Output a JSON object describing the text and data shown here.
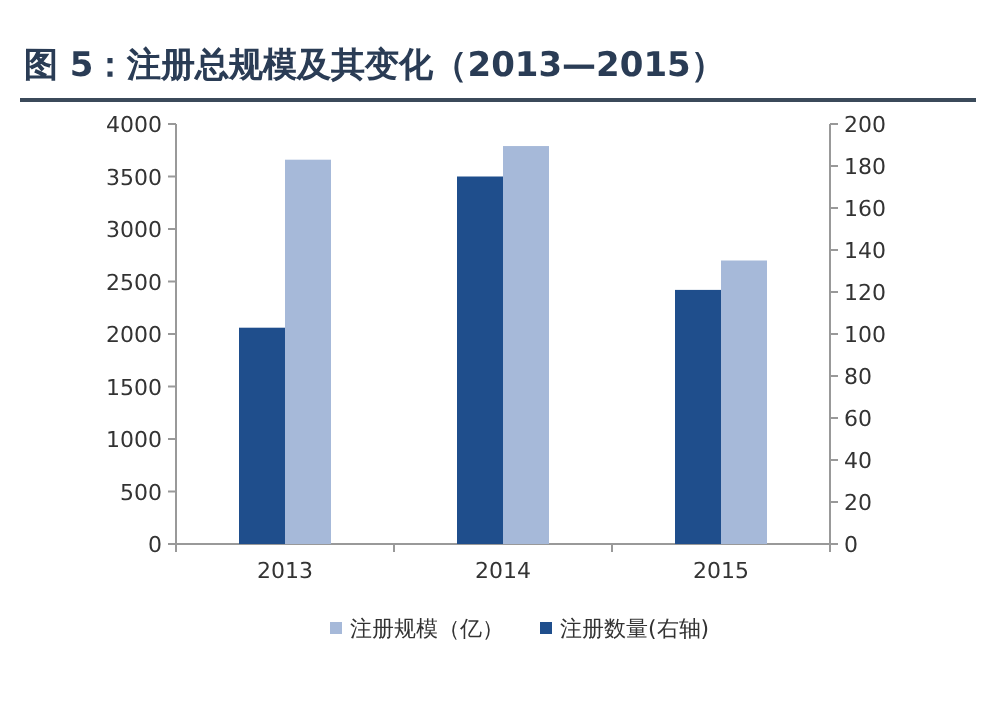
{
  "chart_data": {
    "type": "bar",
    "title": "图 5：注册总规模及其变化（2013—2015）",
    "categories": [
      "2013",
      "2014",
      "2015"
    ],
    "series": [
      {
        "name": "注册规模（亿）",
        "color": "#a6b9d9",
        "values": [
          3660,
          3790,
          2700
        ]
      },
      {
        "name": "注册数量(右轴)",
        "color": "#1f4e8c",
        "values": [
          103,
          175,
          121
        ],
        "axis": "y2"
      }
    ],
    "ylim": [
      0,
      4000
    ],
    "yticks": [
      0,
      500,
      1000,
      1500,
      2000,
      2500,
      3000,
      3500,
      4000
    ],
    "y2lim": [
      0,
      200
    ],
    "y2ticks": [
      0,
      20,
      40,
      60,
      80,
      100,
      120,
      140,
      160,
      180,
      200
    ],
    "legend": "bottom"
  }
}
